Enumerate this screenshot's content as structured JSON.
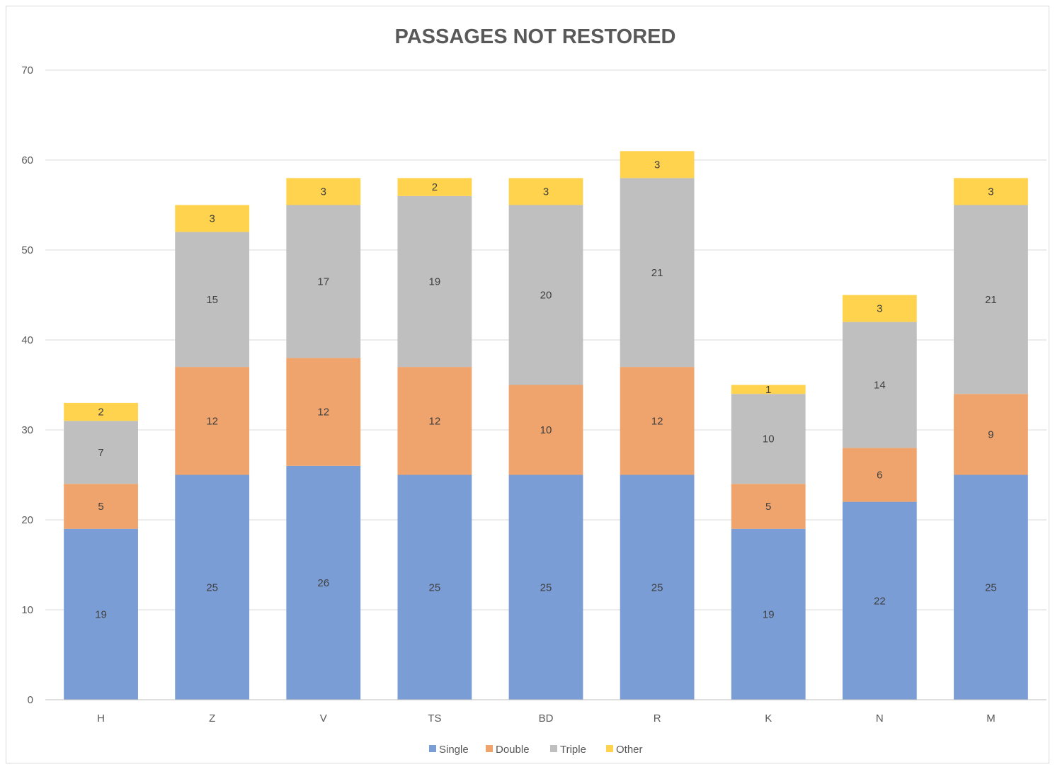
{
  "chart_data": {
    "type": "bar",
    "stacked": true,
    "title": "PASSAGES NOT RESTORED",
    "xlabel": "",
    "ylabel": "",
    "categories": [
      "H",
      "Z",
      "V",
      "TS",
      "BD",
      "R",
      "K",
      "N",
      "M"
    ],
    "series": [
      {
        "name": "Single",
        "color": "#7b9dd5",
        "values": [
          19,
          25,
          26,
          25,
          25,
          25,
          19,
          22,
          25
        ]
      },
      {
        "name": "Double",
        "color": "#f0a46d",
        "values": [
          5,
          12,
          12,
          12,
          10,
          12,
          5,
          6,
          9
        ]
      },
      {
        "name": "Triple",
        "color": "#bfbfbf",
        "values": [
          7,
          15,
          17,
          19,
          20,
          21,
          10,
          14,
          21
        ]
      },
      {
        "name": "Other",
        "color": "#ffd34d",
        "values": [
          2,
          3,
          3,
          2,
          3,
          3,
          1,
          3,
          3
        ]
      }
    ],
    "ylim": [
      0,
      70
    ],
    "yticks": [
      0,
      10,
      20,
      30,
      40,
      50,
      60,
      70
    ],
    "grid": true,
    "legend_position": "bottom",
    "data_labels": true
  }
}
